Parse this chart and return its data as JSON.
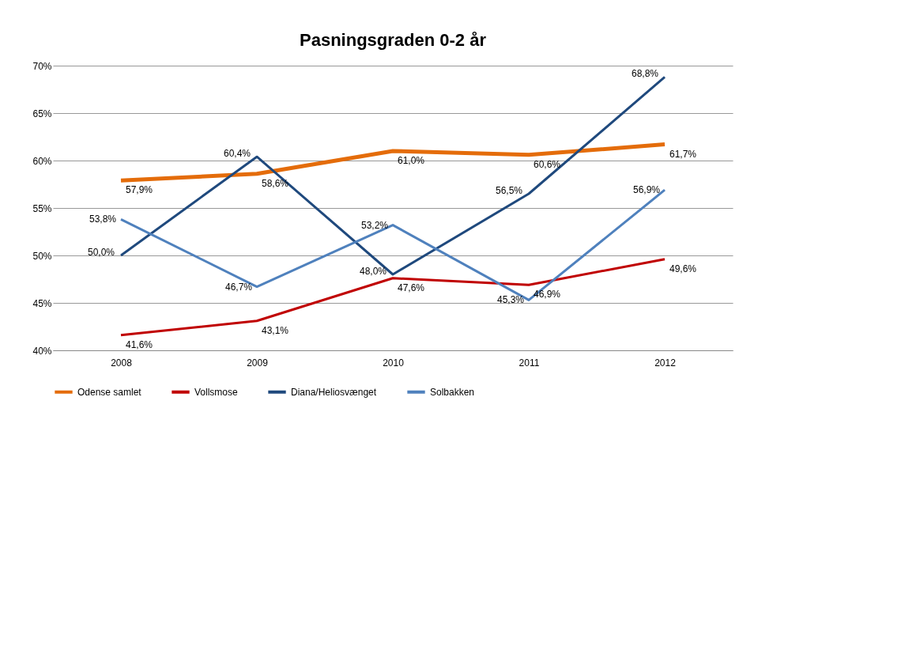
{
  "chart_data": {
    "type": "line",
    "title": "Pasningsgraden 0-2 år",
    "categories": [
      "2008",
      "2009",
      "2010",
      "2011",
      "2012"
    ],
    "series": [
      {
        "name": "Odense samlet",
        "color": "#e46c0a",
        "values": [
          57.9,
          58.6,
          61.0,
          60.6,
          61.7
        ],
        "value_labels": [
          "57,9%",
          "58,6%",
          "61,0%",
          "60,6%",
          "61,7%"
        ]
      },
      {
        "name": "Vollsmose",
        "color": "#c00000",
        "values": [
          41.6,
          43.1,
          47.6,
          46.9,
          49.6
        ],
        "value_labels": [
          "41,6%",
          "43,1%",
          "47,6%",
          "46,9%",
          "49,6%"
        ]
      },
      {
        "name": "Diana/Heliosvænget",
        "color": "#1f497d",
        "values": [
          50.0,
          60.4,
          48.0,
          56.5,
          68.8
        ],
        "value_labels": [
          "50,0%",
          "60,4%",
          "48,0%",
          "56,5%",
          "68,8%"
        ]
      },
      {
        "name": "Solbakken",
        "color": "#4f81bd",
        "values": [
          53.8,
          46.7,
          53.2,
          45.3,
          56.9
        ],
        "value_labels": [
          "53,8%",
          "46,7%",
          "53,2%",
          "45,3%",
          "56,9%"
        ]
      }
    ],
    "ylim": [
      40,
      70
    ],
    "yticks": [
      {
        "value": 40,
        "label": "40%"
      },
      {
        "value": 45,
        "label": "45%"
      },
      {
        "value": 50,
        "label": "50%"
      },
      {
        "value": 55,
        "label": "55%"
      },
      {
        "value": 60,
        "label": "60%"
      },
      {
        "value": 65,
        "label": "65%"
      },
      {
        "value": 70,
        "label": "70%"
      }
    ],
    "grid": "y",
    "legend": "bottom",
    "marker": "none",
    "line_style": "solid"
  }
}
